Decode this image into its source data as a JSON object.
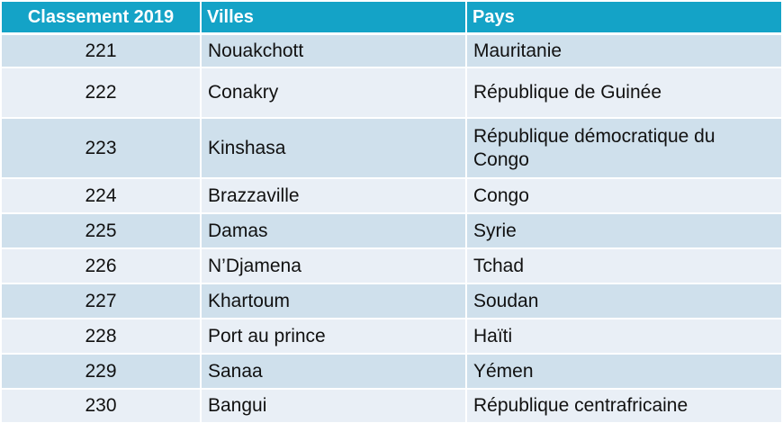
{
  "table": {
    "headers": {
      "rank": "Classement 2019",
      "city": "Villes",
      "country": "Pays"
    },
    "rows": [
      {
        "rank": "221",
        "city": "Nouakchott",
        "country": "Mauritanie"
      },
      {
        "rank": "222",
        "city": "Conakry",
        "country": "République de Guinée"
      },
      {
        "rank": "223",
        "city": "Kinshasa",
        "country": "République démocratique du Congo"
      },
      {
        "rank": "224",
        "city": "Brazzaville",
        "country": "Congo"
      },
      {
        "rank": "225",
        "city": "Damas",
        "country": "Syrie"
      },
      {
        "rank": "226",
        "city": "N’Djamena",
        "country": "Tchad"
      },
      {
        "rank": "227",
        "city": "Khartoum",
        "country": "Soudan"
      },
      {
        "rank": "228",
        "city": "Port au prince",
        "country": "Haïti"
      },
      {
        "rank": "229",
        "city": "Sanaa",
        "country": "Yémen"
      },
      {
        "rank": "230",
        "city": "Bangui",
        "country": "République centrafricaine"
      }
    ]
  },
  "colors": {
    "header_bg": "#14a3c7",
    "row_odd_bg": "#cfe0ec",
    "row_even_bg": "#e9eff6"
  }
}
